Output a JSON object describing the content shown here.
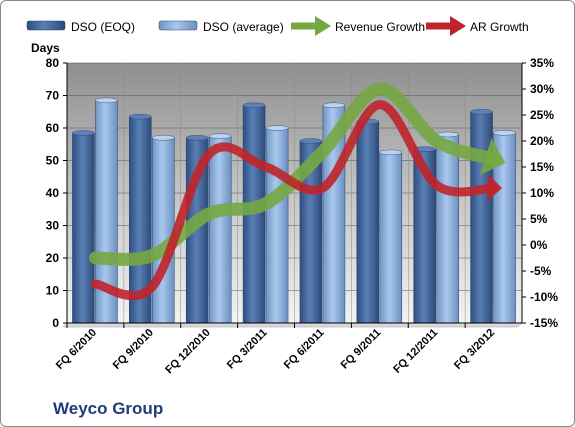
{
  "chart_data": {
    "type": "bar",
    "title": "",
    "brand": "Weyco Group",
    "ylabel_left": "Days",
    "ylim_left": [
      0,
      80
    ],
    "yticks_left": [
      "0",
      "10",
      "20",
      "30",
      "40",
      "50",
      "60",
      "70",
      "80"
    ],
    "ylim_right": [
      -15,
      35
    ],
    "yticks_right": [
      "-15%",
      "-10%",
      "-5%",
      "0%",
      "5%",
      "10%",
      "15%",
      "20%",
      "25%",
      "30%",
      "35%"
    ],
    "categories": [
      "FQ 6/2010",
      "FQ 9/2010",
      "FQ 12/2010",
      "FQ 3/2011",
      "FQ 6/2011",
      "FQ 9/2011",
      "FQ 12/2011",
      "FQ 3/2012"
    ],
    "series": [
      {
        "name": "DSO (EOQ)",
        "axis": "left",
        "kind": "bar",
        "color": "#4a6fa5",
        "values": [
          58.5,
          63.5,
          57,
          67,
          56,
          62,
          53.5,
          65
        ]
      },
      {
        "name": "DSO (average)",
        "axis": "left",
        "kind": "bar",
        "color": "#8db4e2",
        "values": [
          68.5,
          57,
          57.5,
          60,
          67,
          52.5,
          58,
          58.5
        ]
      },
      {
        "name": "Revenue Growth",
        "axis": "right",
        "kind": "arrow-line",
        "color": "#77a743",
        "values": [
          -2.5,
          -2,
          6,
          8,
          18,
          30,
          20,
          16.5
        ]
      },
      {
        "name": "AR Growth",
        "axis": "right",
        "kind": "arrow-line",
        "color": "#c0242a",
        "values": [
          -7.5,
          -8,
          17.5,
          15,
          11,
          27,
          11.5,
          11
        ]
      }
    ],
    "legend_position": "top",
    "grid": true
  }
}
